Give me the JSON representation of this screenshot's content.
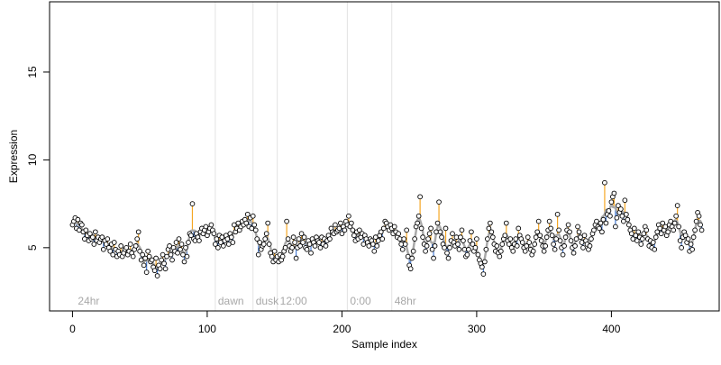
{
  "chart_data": {
    "type": "scatter",
    "xlabel": "Sample index",
    "ylabel": "Expression",
    "xlim": [
      -17,
      480
    ],
    "ylim": [
      1.4,
      19.0
    ],
    "x_ticks": [
      0,
      100,
      200,
      300,
      400
    ],
    "y_ticks": [
      5,
      10,
      15
    ],
    "phase_markers": [
      {
        "label": "24hr",
        "x": 2,
        "line": false
      },
      {
        "label": "dawn",
        "x": 106,
        "line": true
      },
      {
        "label": "dusk",
        "x": 134,
        "line": true
      },
      {
        "label": "12:00",
        "x": 152,
        "line": true
      },
      {
        "label": "0:00",
        "x": 204,
        "line": true
      },
      {
        "label": "48hr",
        "x": 237,
        "line": true
      }
    ],
    "series": [
      {
        "values": [
          6.3,
          6.5,
          6.7,
          6.1,
          6.6,
          6.0,
          6.4,
          6.3,
          5.9,
          5.5,
          6.0,
          5.7,
          5.4,
          5.8,
          5.5,
          5.6,
          5.2,
          5.9,
          5.4,
          5.6,
          5.3,
          5.5,
          5.6,
          4.9,
          5.4,
          5.2,
          5.5,
          5.0,
          4.8,
          5.2,
          4.6,
          5.3,
          4.9,
          4.5,
          4.8,
          4.6,
          5.1,
          4.5,
          4.7,
          4.9,
          5.0,
          4.6,
          4.8,
          5.2,
          4.7,
          4.5,
          4.9,
          5.1,
          5.5,
          5.9,
          4.8,
          4.3,
          4.6,
          4.0,
          4.4,
          3.6,
          4.8,
          4.5,
          4.2,
          4.3,
          3.9,
          3.7,
          4.4,
          3.4,
          4.0,
          3.8,
          4.3,
          4.6,
          4.1,
          3.8,
          4.5,
          4.9,
          5.1,
          4.6,
          4.3,
          5.0,
          4.8,
          5.3,
          4.7,
          5.5,
          4.9,
          5.2,
          4.6,
          4.2,
          5.0,
          4.5,
          5.3,
          5.8,
          5.7,
          7.5,
          5.5,
          5.4,
          5.8,
          5.6,
          5.4,
          5.9,
          6.1,
          5.8,
          6.0,
          6.2,
          5.7,
          5.9,
          6.1,
          6.3,
          6.0,
          5.8,
          5.2,
          5.5,
          5.0,
          5.7,
          5.3,
          5.6,
          5.1,
          5.4,
          5.7,
          5.5,
          5.2,
          5.8,
          5.6,
          5.3,
          6.3,
          5.9,
          6.1,
          6.4,
          6.0,
          6.2,
          6.5,
          6.3,
          6.6,
          6.4,
          6.9,
          6.2,
          6.7,
          6.1,
          6.8,
          6.3,
          6.0,
          5.5,
          4.6,
          5.3,
          4.9,
          5.1,
          5.2,
          5.5,
          5.8,
          6.4,
          5.2,
          4.7,
          4.5,
          4.2,
          4.8,
          4.3,
          4.5,
          4.2,
          4.6,
          4.3,
          4.5,
          4.8,
          5.0,
          6.5,
          5.5,
          5.1,
          4.8,
          5.0,
          5.6,
          5.3,
          4.4,
          5.0,
          5.5,
          5.1,
          5.8,
          5.3,
          5.6,
          5.0,
          4.9,
          5.4,
          5.2,
          4.7,
          5.5,
          5.3,
          5.1,
          5.6,
          5.4,
          5.3,
          5.0,
          5.6,
          5.2,
          5.5,
          5.1,
          5.4,
          5.7,
          5.5,
          6.1,
          5.9,
          5.8,
          6.3,
          5.9,
          6.0,
          6.1,
          6.4,
          5.8,
          6.2,
          6.0,
          6.5,
          6.3,
          6.8,
          6.2,
          6.4,
          6.0,
          5.7,
          5.4,
          5.9,
          5.5,
          6.0,
          5.6,
          5.8,
          5.2,
          5.7,
          5.5,
          5.3,
          5.1,
          5.5,
          5.4,
          5.2,
          4.8,
          5.6,
          5.1,
          5.4,
          5.7,
          5.9,
          5.5,
          6.1,
          6.5,
          6.4,
          6.2,
          6.0,
          6.3,
          6.1,
          5.8,
          6.2,
          5.9,
          5.6,
          5.8,
          5.5,
          5.2,
          4.9,
          5.5,
          5.2,
          6.0,
          4.5,
          4.0,
          3.8,
          4.4,
          4.8,
          5.5,
          6.2,
          6.4,
          6.8,
          7.9,
          6.1,
          5.6,
          5.2,
          4.8,
          5.1,
          5.5,
          5.8,
          6.1,
          4.9,
          4.4,
          5.1,
          5.9,
          6.4,
          7.6,
          5.9,
          5.6,
          5.2,
          5.0,
          6.1,
          4.7,
          4.4,
          5.0,
          5.4,
          5.8,
          5.3,
          5.1,
          5.6,
          5.2,
          4.9,
          5.6,
          6.0,
          5.4,
          4.9,
          4.5,
          4.6,
          4.9,
          5.4,
          5.9,
          5.2,
          4.8,
          5.0,
          5.5,
          4.6,
          4.3,
          4.1,
          3.9,
          3.5,
          4.2,
          4.9,
          5.5,
          6.1,
          6.4,
          5.9,
          5.6,
          5.2,
          4.8,
          5.1,
          4.7,
          4.5,
          4.8,
          5.2,
          5.5,
          5.7,
          6.4,
          5.4,
          5.2,
          5.5,
          5.0,
          4.8,
          5.2,
          5.5,
          5.1,
          6.1,
          5.7,
          5.5,
          5.3,
          5.0,
          4.8,
          5.1,
          5.6,
          5.3,
          4.9,
          4.6,
          4.8,
          5.2,
          5.6,
          5.9,
          6.5,
          5.7,
          5.4,
          5.1,
          4.8,
          5.1,
          5.6,
          6.0,
          6.5,
          6.1,
          5.7,
          5.2,
          4.9,
          5.5,
          6.9,
          6.0,
          5.4,
          5.0,
          4.6,
          5.1,
          5.6,
          6.0,
          6.3,
          5.9,
          5.4,
          5.0,
          4.7,
          5.1,
          5.5,
          6.2,
          5.9,
          5.6,
          5.3,
          5.0,
          5.7,
          5.4,
          5.2,
          4.9,
          5.1,
          5.5,
          5.8,
          6.0,
          6.3,
          6.5,
          6.2,
          6.1,
          6.4,
          5.9,
          6.6,
          8.7,
          6.4,
          6.9,
          7.1,
          6.8,
          7.6,
          7.9,
          8.1,
          6.2,
          6.7,
          7.4,
          7.0,
          7.2,
          6.8,
          6.5,
          7.7,
          6.9,
          6.6,
          6.3,
          6.0,
          5.8,
          5.5,
          6.1,
          5.7,
          5.4,
          5.9,
          5.6,
          5.2,
          5.5,
          5.8,
          6.2,
          6.0,
          5.5,
          5.1,
          5.4,
          5.0,
          5.3,
          4.9,
          5.6,
          5.9,
          6.3,
          6.1,
          5.8,
          6.4,
          6.0,
          6.2,
          5.7,
          5.9,
          6.3,
          6.5,
          6.2,
          6.0,
          6.4,
          6.8,
          7.4,
          6.2,
          5.4,
          5.0,
          5.6,
          5.9,
          5.7,
          5.3,
          5.5,
          4.8,
          5.2,
          4.9,
          5.6,
          6.0,
          6.5,
          7.0,
          6.8,
          6.3,
          6.0
        ]
      }
    ],
    "colors": {
      "points_fill": "#ffffff",
      "points_stroke": "#000000",
      "above_trend": "#f5a623",
      "below_trend": "#4a7fd6",
      "trend": "#a9a9a9",
      "phase_line": "#e3e3e3",
      "phase_label": "#a8a8a8"
    }
  }
}
